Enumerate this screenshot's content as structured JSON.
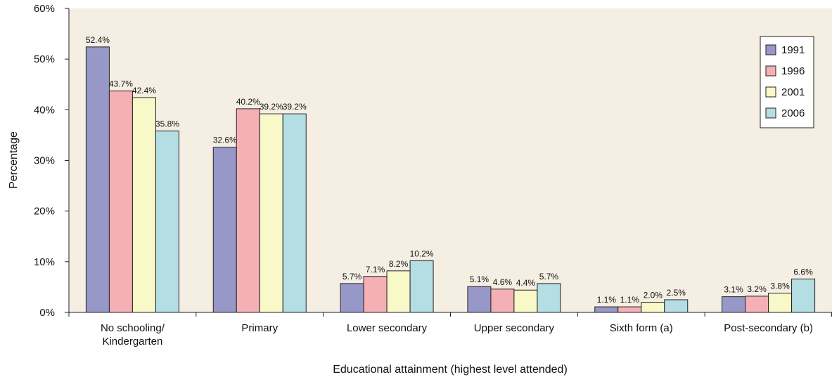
{
  "chart_data": {
    "type": "bar",
    "title": "",
    "xlabel": "Educational attainment (highest level attended)",
    "ylabel": "Percentage",
    "ylim": [
      0,
      60
    ],
    "yticks": [
      "0%",
      "10%",
      "20%",
      "30%",
      "40%",
      "50%",
      "60%"
    ],
    "grid": false,
    "legend_position": "top-right",
    "background_color": "#f5eee3",
    "categories": [
      [
        "No schooling/",
        "Kindergarten"
      ],
      [
        "Primary"
      ],
      [
        "Lower secondary"
      ],
      [
        "Upper secondary"
      ],
      [
        "Sixth form (a)"
      ],
      [
        "Post-secondary (b)"
      ]
    ],
    "series": [
      {
        "name": "1991",
        "color": "#9898c8",
        "values": [
          52.4,
          32.6,
          5.7,
          5.1,
          1.1,
          3.1
        ],
        "labels": [
          "52.4%",
          "32.6%",
          "5.7%",
          "5.1%",
          "1.1%",
          "3.1%"
        ]
      },
      {
        "name": "1996",
        "color": "#f4b0b4",
        "values": [
          43.7,
          40.2,
          7.1,
          4.6,
          1.1,
          3.2
        ],
        "labels": [
          "43.7%",
          "40.2%",
          "7.1%",
          "4.6%",
          "1.1%",
          "3.2%"
        ]
      },
      {
        "name": "2001",
        "color": "#f8f8c8",
        "values": [
          42.4,
          39.2,
          8.2,
          4.4,
          2.0,
          3.8
        ],
        "labels": [
          "42.4%",
          "39.2%",
          "8.2%",
          "4.4%",
          "2.0%",
          "3.8%"
        ]
      },
      {
        "name": "2006",
        "color": "#b4dde4",
        "values": [
          35.8,
          39.2,
          10.2,
          5.7,
          2.5,
          6.6
        ],
        "labels": [
          "35.8%",
          "39.2%",
          "10.2%",
          "5.7%",
          "2.5%",
          "6.6%"
        ]
      }
    ]
  }
}
